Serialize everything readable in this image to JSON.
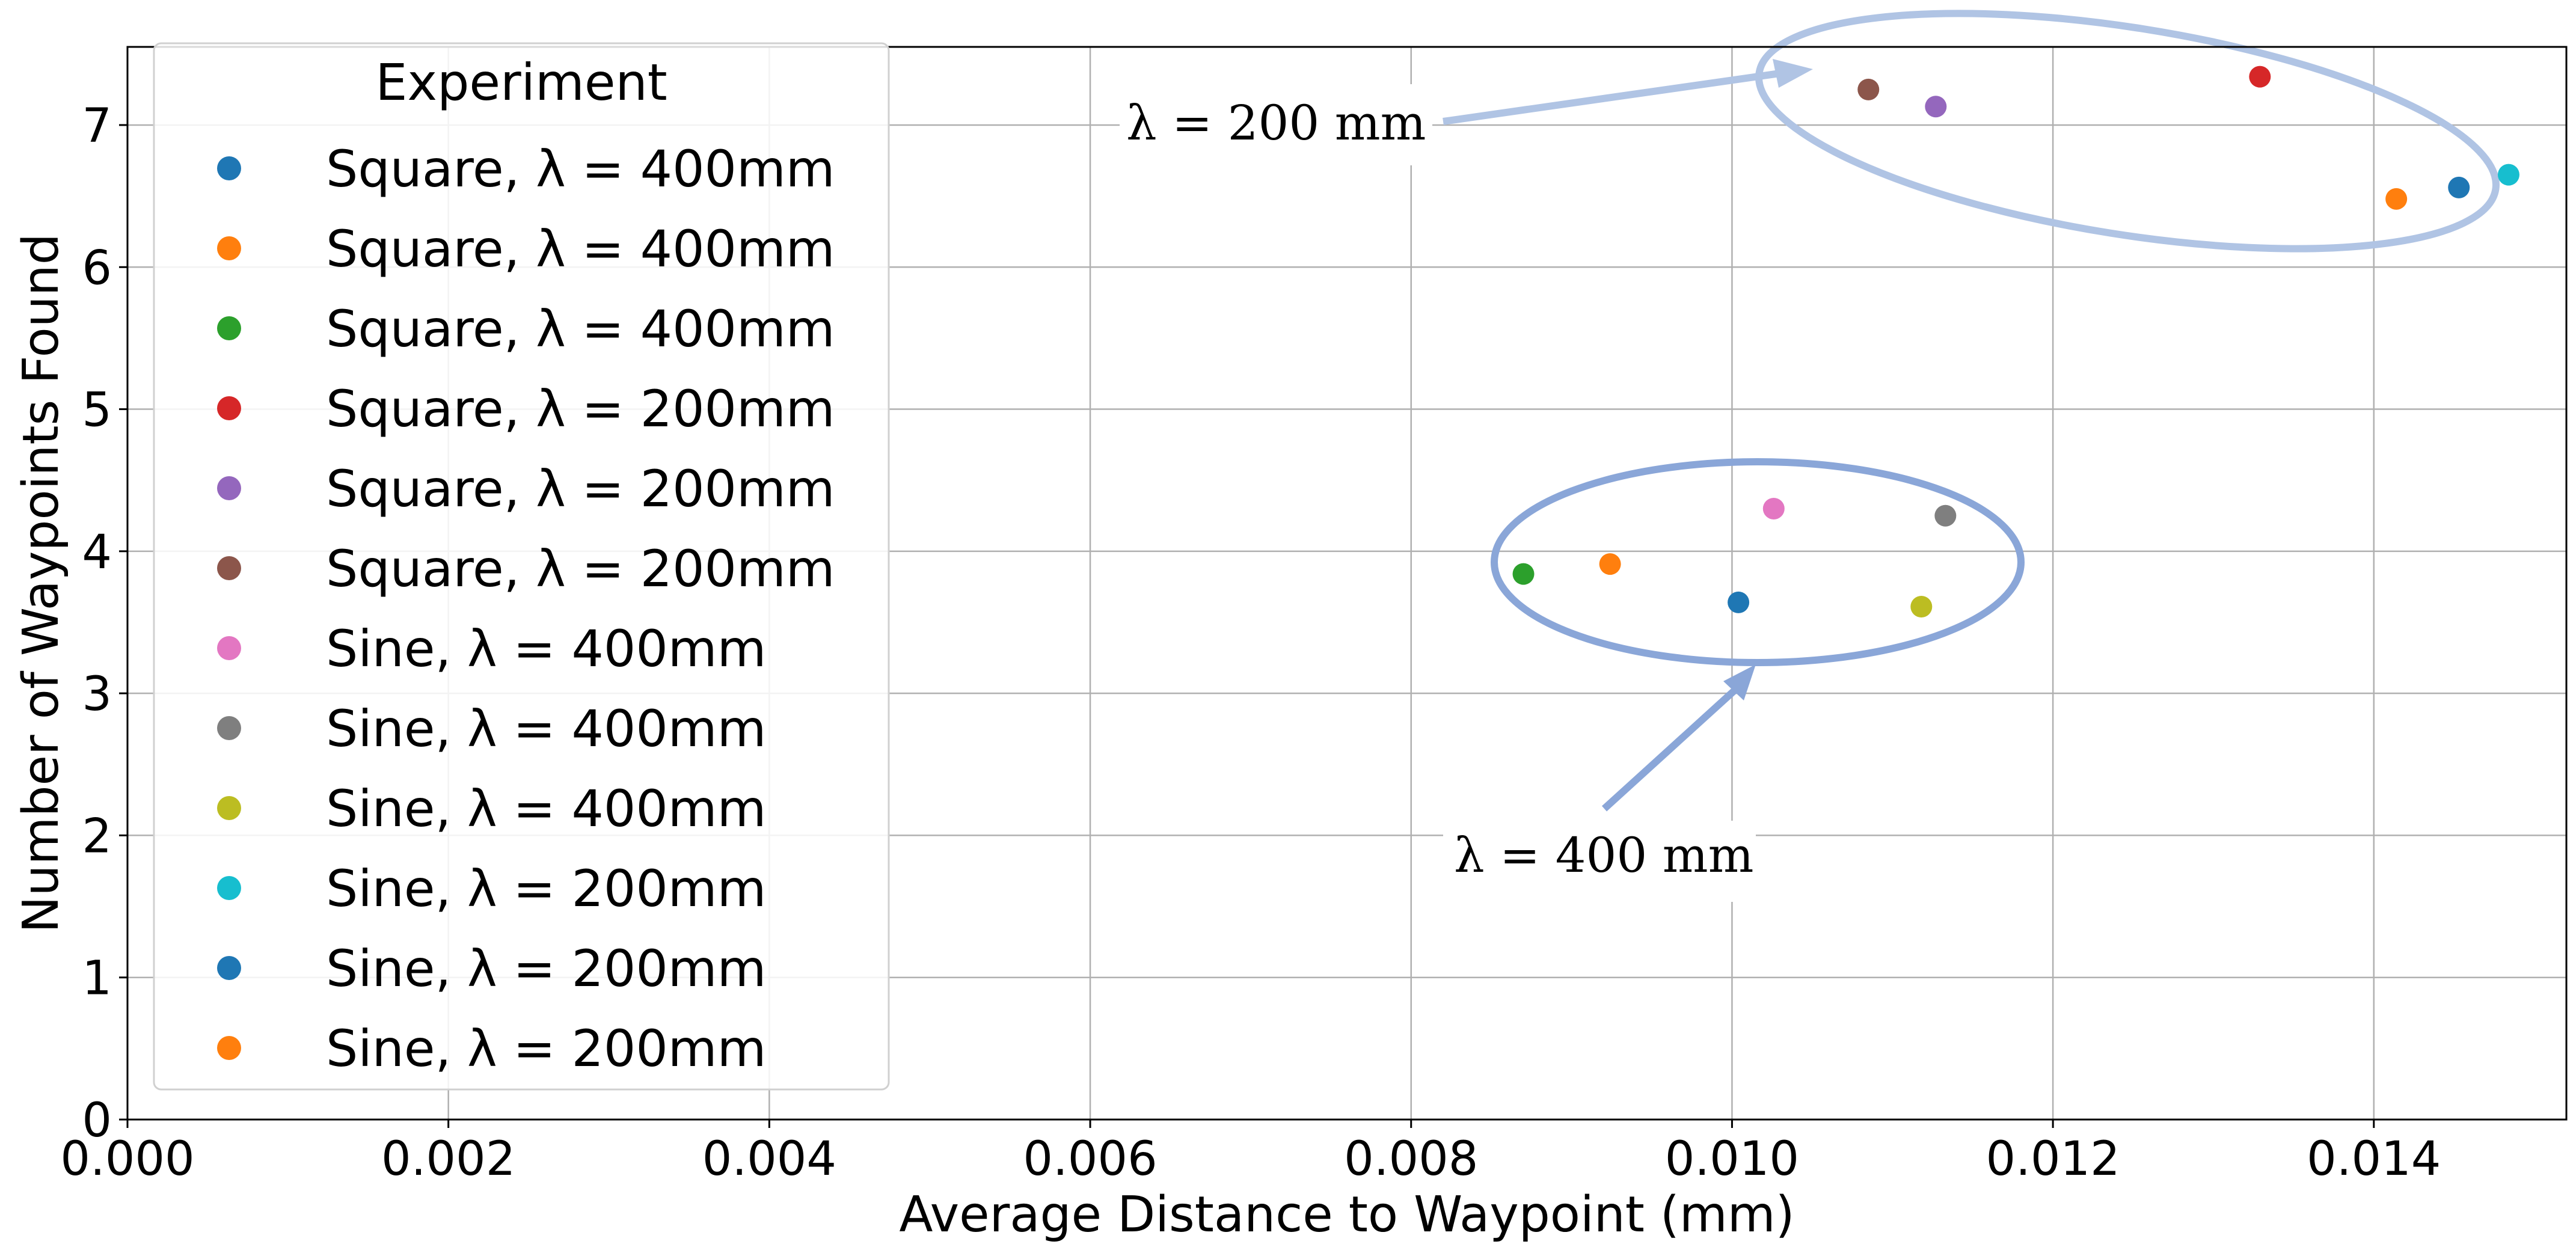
{
  "chart_data": {
    "type": "scatter",
    "title": "",
    "xlabel": "Average Distance to Waypoint (mm)",
    "ylabel": "Number of Waypoints Found",
    "xlim": [
      0,
      0.0152
    ],
    "ylim": [
      0,
      7.55
    ],
    "xticks": [
      "0.000",
      "0.002",
      "0.004",
      "0.006",
      "0.008",
      "0.010",
      "0.012",
      "0.014"
    ],
    "yticks": [
      "0",
      "1",
      "2",
      "3",
      "4",
      "5",
      "6",
      "7"
    ],
    "grid": true,
    "legend": {
      "title": "Experiment",
      "position": "upper-left"
    },
    "series": [
      {
        "name": "Square, λ = 400mm",
        "color": "#1f77b4",
        "x": [
          0.01453
        ],
        "y": [
          6.56
        ]
      },
      {
        "name": "Square, λ = 400mm",
        "color": "#ff7f0e",
        "x": [
          0.01414
        ],
        "y": [
          6.48
        ]
      },
      {
        "name": "Square, λ = 400mm",
        "color": "#2ca02c",
        "x": [
          0.0087
        ],
        "y": [
          3.84
        ]
      },
      {
        "name": "Square, λ = 200mm",
        "color": "#d62728",
        "x": [
          0.01329
        ],
        "y": [
          7.34
        ]
      },
      {
        "name": "Square, λ = 200mm",
        "color": "#9467bd",
        "x": [
          0.01127
        ],
        "y": [
          7.13
        ]
      },
      {
        "name": "Square, λ = 200mm",
        "color": "#8c564b",
        "x": [
          0.01085
        ],
        "y": [
          7.25
        ]
      },
      {
        "name": "Sine, λ = 400mm",
        "color": "#e377c2",
        "x": [
          0.01026
        ],
        "y": [
          4.3
        ]
      },
      {
        "name": "Sine, λ = 400mm",
        "color": "#7f7f7f",
        "x": [
          0.01133
        ],
        "y": [
          4.25
        ]
      },
      {
        "name": "Sine, λ = 400mm",
        "color": "#bcbd22",
        "x": [
          0.01118
        ],
        "y": [
          3.61
        ]
      },
      {
        "name": "Sine, λ = 200mm",
        "color": "#17becf",
        "x": [
          0.01484
        ],
        "y": [
          6.65
        ]
      },
      {
        "name": "Sine, λ = 200mm",
        "color": "#1f77b4",
        "x": [
          0.01004
        ],
        "y": [
          3.64
        ]
      },
      {
        "name": "Sine, λ = 200mm",
        "color": "#ff7f0e",
        "x": [
          0.00924
        ],
        "y": [
          3.91
        ]
      }
    ],
    "annotations": [
      {
        "text": "λ = 200 mm",
        "group": "upper cluster",
        "color": "#b0c4e4"
      },
      {
        "text": "λ = 400 mm",
        "group": "lower cluster",
        "color": "#8aa6d8"
      }
    ]
  }
}
